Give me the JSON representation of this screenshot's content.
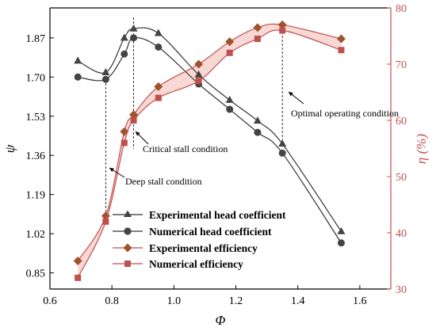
{
  "chart_data": {
    "type": "line",
    "xlabel": "Φ",
    "ylabel_left": "ψ",
    "ylabel_right": "η (%)",
    "xlim": [
      0.6,
      1.7
    ],
    "ylim_left": [
      0.78,
      2.0
    ],
    "ylim_right": [
      30,
      80
    ],
    "x_ticks": [
      "0.6",
      "0.8",
      "1.0",
      "1.2",
      "1.4",
      "1.6"
    ],
    "y_left_ticks": [
      "0.85",
      "1.02",
      "1.19",
      "1.36",
      "1.53",
      "1.70",
      "1.87"
    ],
    "y_right_ticks": [
      "30",
      "40",
      "50",
      "60",
      "70",
      "80"
    ],
    "colors": {
      "head": "#333333",
      "eff": "#c0504d",
      "eff_dark": "#a0522d",
      "band": "#f4c7c3",
      "axis_right": "#c0504d"
    },
    "series": [
      {
        "name": "Experimental head coefficient",
        "axis": "left",
        "marker": "triangle",
        "x": [
          0.69,
          0.78,
          0.84,
          0.87,
          0.95,
          1.08,
          1.18,
          1.27,
          1.35,
          1.54
        ],
        "y": [
          1.77,
          1.72,
          1.87,
          1.91,
          1.89,
          1.71,
          1.6,
          1.51,
          1.41,
          1.03
        ]
      },
      {
        "name": "Numerical head coefficient",
        "axis": "left",
        "marker": "circle",
        "x": [
          0.69,
          0.78,
          0.84,
          0.87,
          0.95,
          1.08,
          1.18,
          1.27,
          1.35,
          1.54
        ],
        "y": [
          1.7,
          1.69,
          1.8,
          1.87,
          1.83,
          1.67,
          1.56,
          1.46,
          1.37,
          0.98
        ]
      },
      {
        "name": "Experimental efficiency",
        "axis": "right",
        "marker": "diamond",
        "x": [
          0.69,
          0.78,
          0.84,
          0.87,
          0.95,
          1.08,
          1.18,
          1.27,
          1.35,
          1.54
        ],
        "y": [
          35,
          43,
          58,
          61,
          66,
          70,
          74,
          76.5,
          77,
          74.5
        ]
      },
      {
        "name": "Numerical efficiency",
        "axis": "right",
        "marker": "square",
        "x": [
          0.69,
          0.78,
          0.84,
          0.87,
          0.95,
          1.08,
          1.18,
          1.27,
          1.35,
          1.54
        ],
        "y": [
          32,
          42,
          56,
          60,
          64,
          67,
          72,
          74.5,
          76,
          72.5
        ]
      }
    ],
    "annotations": [
      {
        "text": "Critical stall condition",
        "x_line": 0.87
      },
      {
        "text": "Deep stall condition",
        "x_line": 0.78
      },
      {
        "text": "Optimal operating condition",
        "x_line": 1.35
      }
    ],
    "legend_position": "bottom-left"
  }
}
